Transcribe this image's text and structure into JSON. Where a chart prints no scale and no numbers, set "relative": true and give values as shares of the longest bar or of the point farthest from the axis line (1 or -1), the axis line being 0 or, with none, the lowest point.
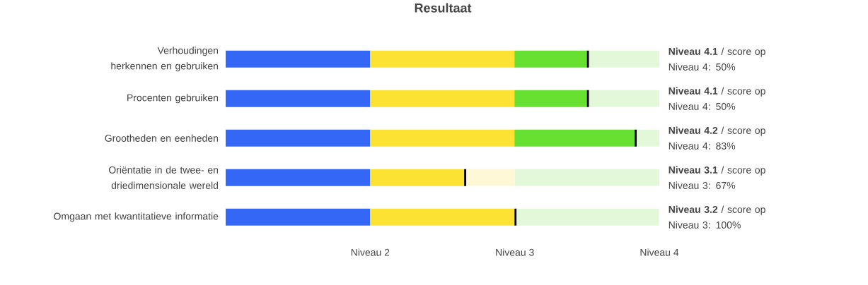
{
  "chart_data": {
    "type": "bar",
    "title": "Resultaat",
    "orientation": "horizontal",
    "stacked": true,
    "relative": true,
    "categories": [
      "Verhoudingen herkennen en gebruiken",
      "Procenten gebruiken",
      "Grootheden en eenheden",
      "Oriëntatie in de twee- en driedimensionale wereld",
      "Omgaan met kwantitatieve informatie"
    ],
    "annotations": [
      "Niveau 2",
      "Niveau 3",
      "Niveau 4",
      "**Niveau 4.1** / score op Niveau 4: 50%",
      "**Niveau 4.1** / score op Niveau 4: 50%",
      "**Niveau 4.2** / score op Niveau 4: 83%",
      "**Niveau 3.1** / score op Niveau 3: 67%",
      "**Niveau 3.2** / score op Niveau 3: 100%"
    ],
    "series": [
      {
        "color": "#3467f5",
        "values": [
          0.333,
          0.333,
          0.333,
          0.333,
          0.333
        ]
      },
      {
        "color": "#fce232",
        "values": [
          0.333,
          0.333,
          0.333,
          0.217,
          0.333
        ]
      },
      {
        "color": "#67e032",
        "values": [
          0.167,
          0.167,
          0.277,
          null,
          null
        ]
      },
      {
        "color": "#000000",
        "values": [
          0.005,
          0.005,
          0.005,
          0.005,
          0.005
        ]
      },
      {
        "color": "#fff8d6",
        "values": [
          null,
          null,
          null,
          0.112,
          null
        ]
      },
      {
        "color": "#e2f8d9",
        "values": [
          0.162,
          0.162,
          0.052,
          0.333,
          0.328
        ]
      }
    ]
  }
}
